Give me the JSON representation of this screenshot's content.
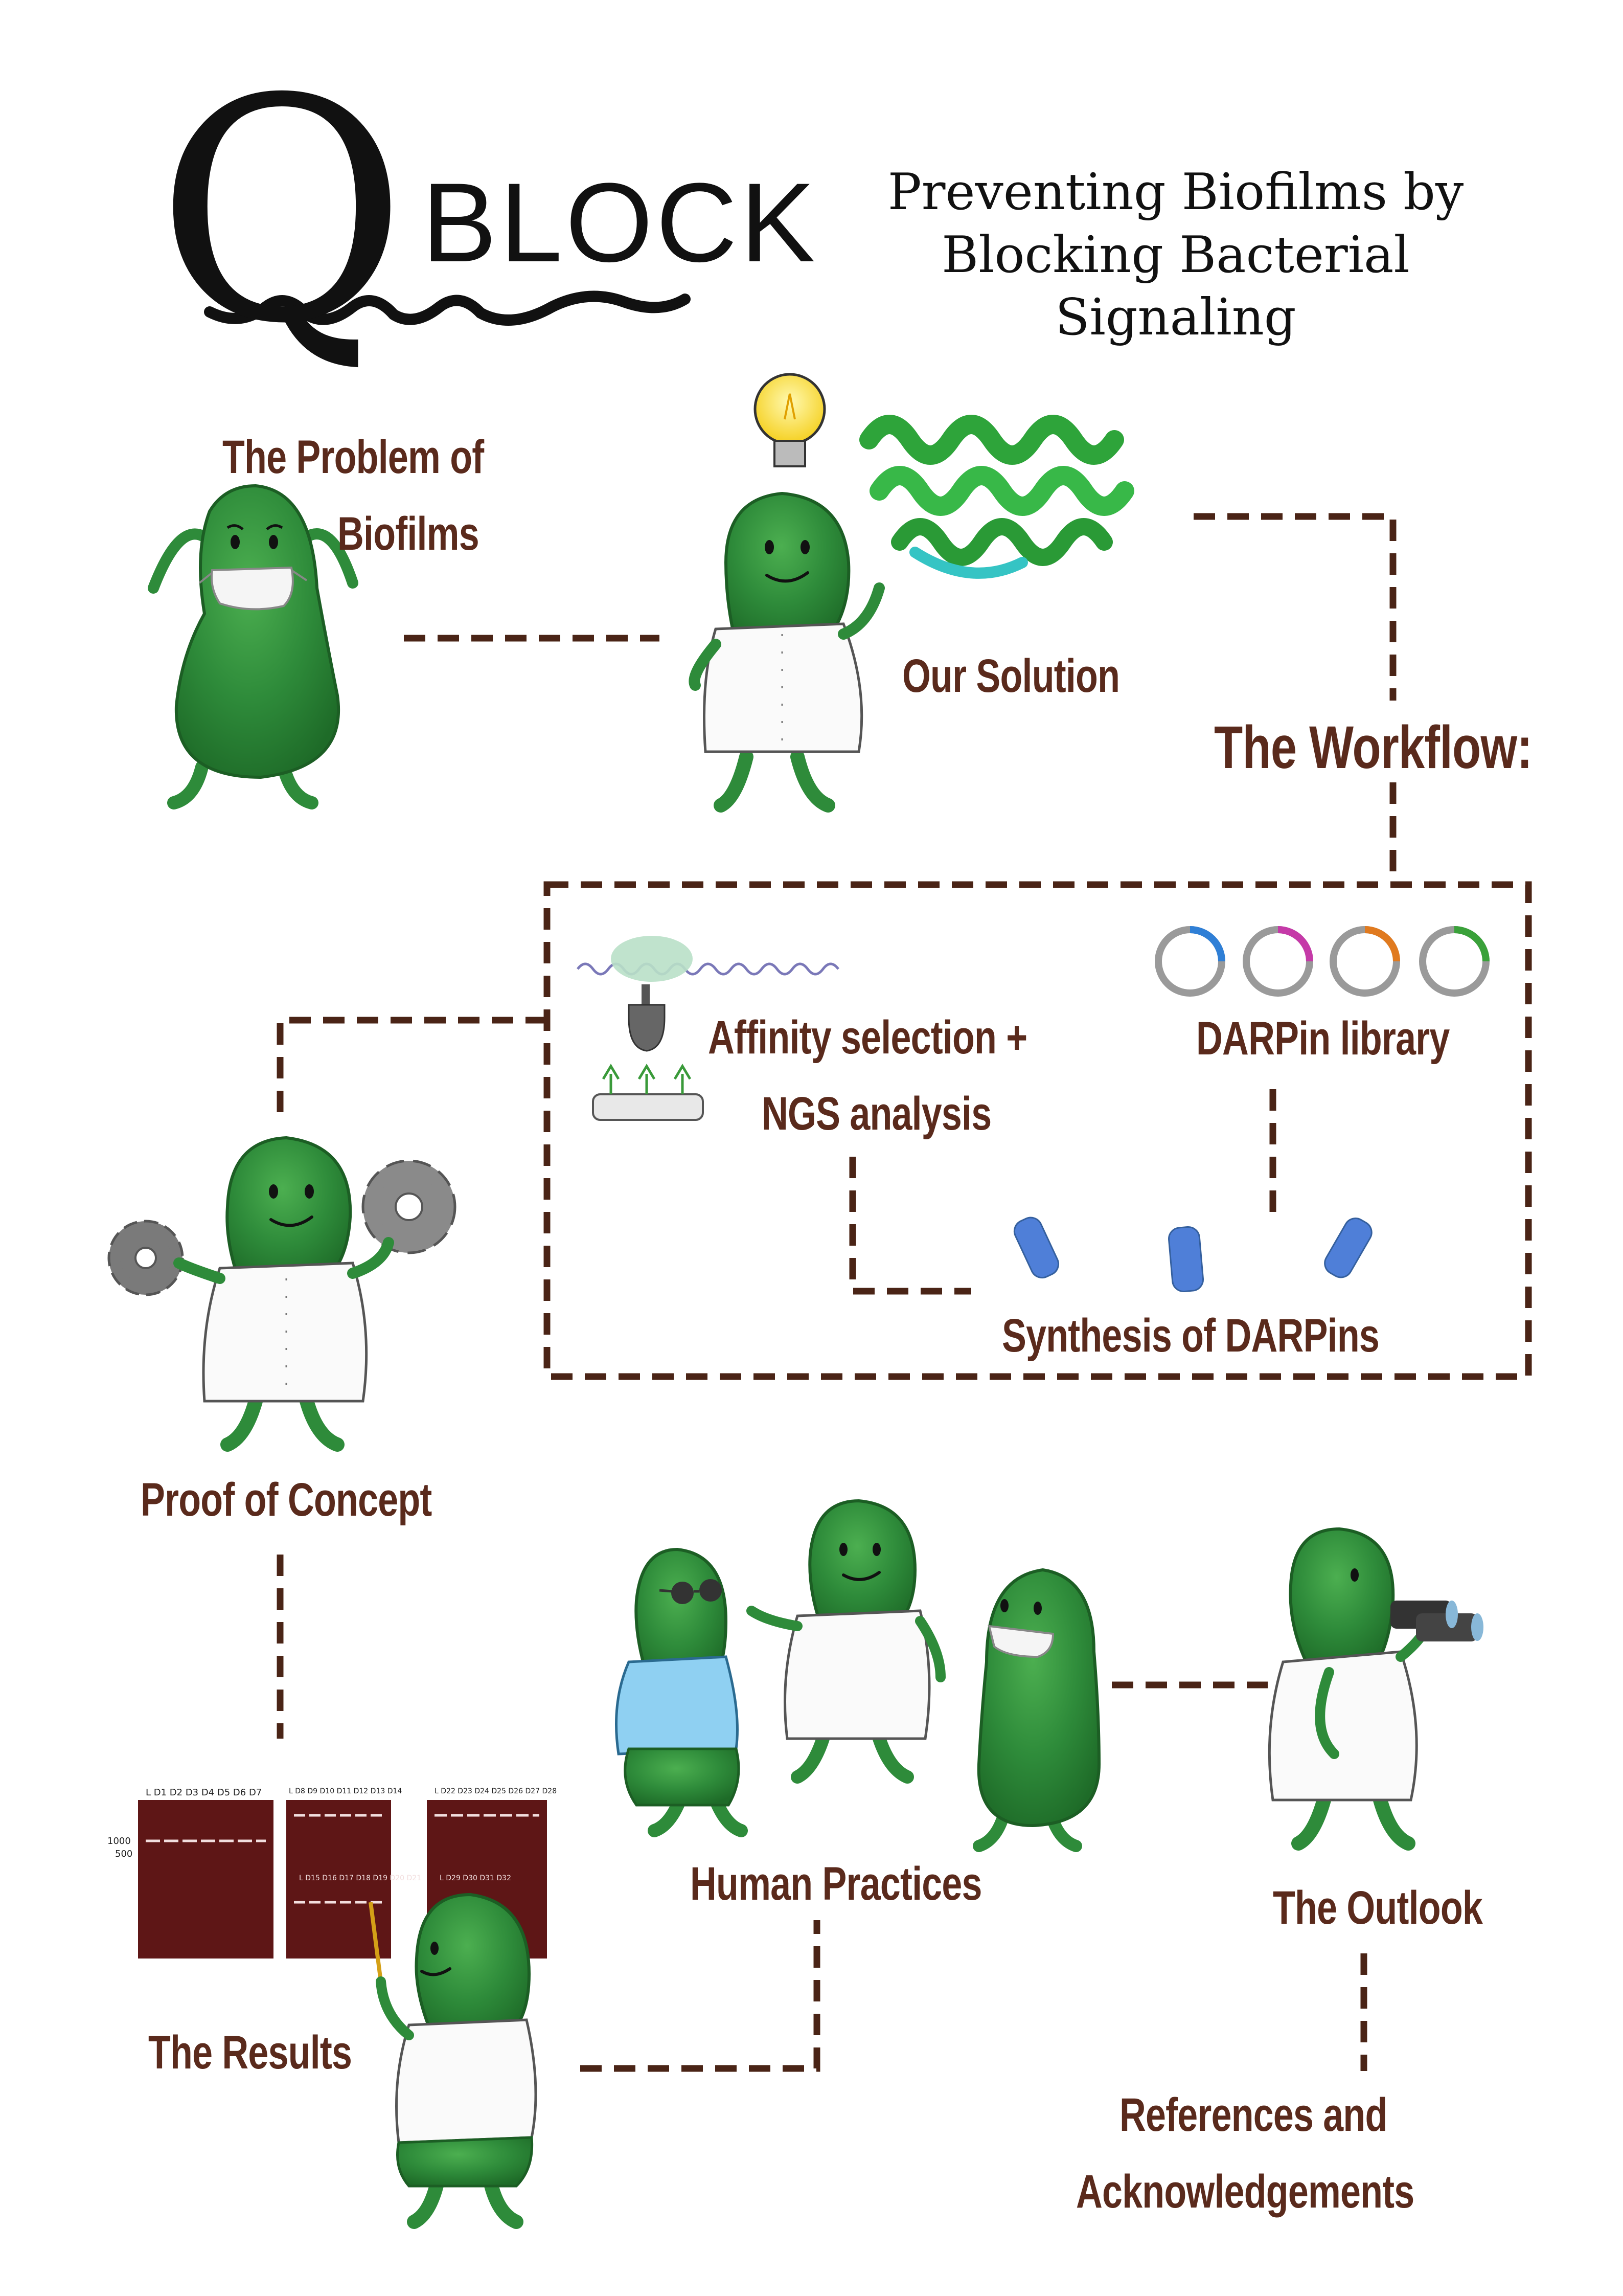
{
  "header": {
    "logo_letter": "Q",
    "logo_word": "BLOCK",
    "tagline_line1": "Preventing Biofilms by",
    "tagline_line2": "Blocking Bacterial Signaling"
  },
  "nodes": {
    "problem_line1": "The Problem of",
    "problem_line2": "Biofilms",
    "solution": "Our Solution",
    "workflow": "The Workflow:",
    "affinity_line1": "Affinity selection +",
    "affinity_line2": "NGS analysis",
    "darpin_library": "DARPin library",
    "synthesis": "Synthesis of DARPins",
    "proof": "Proof of Concept",
    "human_practices": "Human Practices",
    "outlook": "The Outlook",
    "results": "The Results",
    "references_line1": "References and",
    "references_line2": "Acknowledgements"
  },
  "gel": {
    "lanes_1": "L D1 D2 D3 D4 D5 D6 D7",
    "lanes_2": "L D8 D9 D10 D11 D12 D13 D14",
    "lanes_3": "L D22 D23 D24 D25 D26 D27 D28",
    "lanes_4": "L D15 D16 D17 D18 D19 D20 D21",
    "lanes_5": "L D29 D30 D31 D32",
    "marker_1000": "1000",
    "marker_500": "500"
  },
  "colors": {
    "text_brown": "#5a2a1c",
    "dash_brown": "#4a2416",
    "bacteria_green": "#2e8b3a",
    "gel_red": "#5e1616",
    "plasmid_blue": "#2f7fd6",
    "plasmid_magenta": "#c53aa8",
    "plasmid_orange": "#e07a1f",
    "plasmid_green": "#3aa13a"
  }
}
